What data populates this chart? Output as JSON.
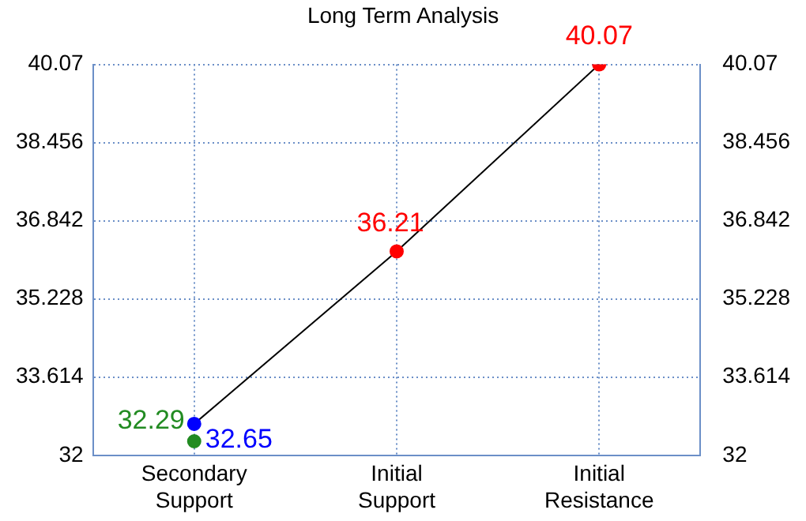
{
  "chart_data": {
    "type": "line",
    "title": "Long Term Analysis",
    "categories": [
      "Secondary Support",
      "Initial Support",
      "Initial Resistance"
    ],
    "ylim": [
      32,
      40.07
    ],
    "yticks": [
      32,
      33.614,
      35.228,
      36.842,
      38.456,
      40.07
    ],
    "y2lim": [
      32,
      40.07
    ],
    "y2ticks": [
      32,
      33.614,
      35.228,
      36.842,
      38.456,
      40.07
    ],
    "grid": true,
    "legend": false,
    "data_labels": true,
    "marker": "circle",
    "series": [
      {
        "color": "#000000",
        "values": [
          32.65,
          36.21,
          40.07
        ],
        "colors": [
          "#0000ff",
          "#ff0000",
          "#ff0000"
        ]
      },
      {
        "type": "scatter",
        "color": "#228b22",
        "values": [
          32.29,
          null,
          null
        ]
      }
    ]
  }
}
